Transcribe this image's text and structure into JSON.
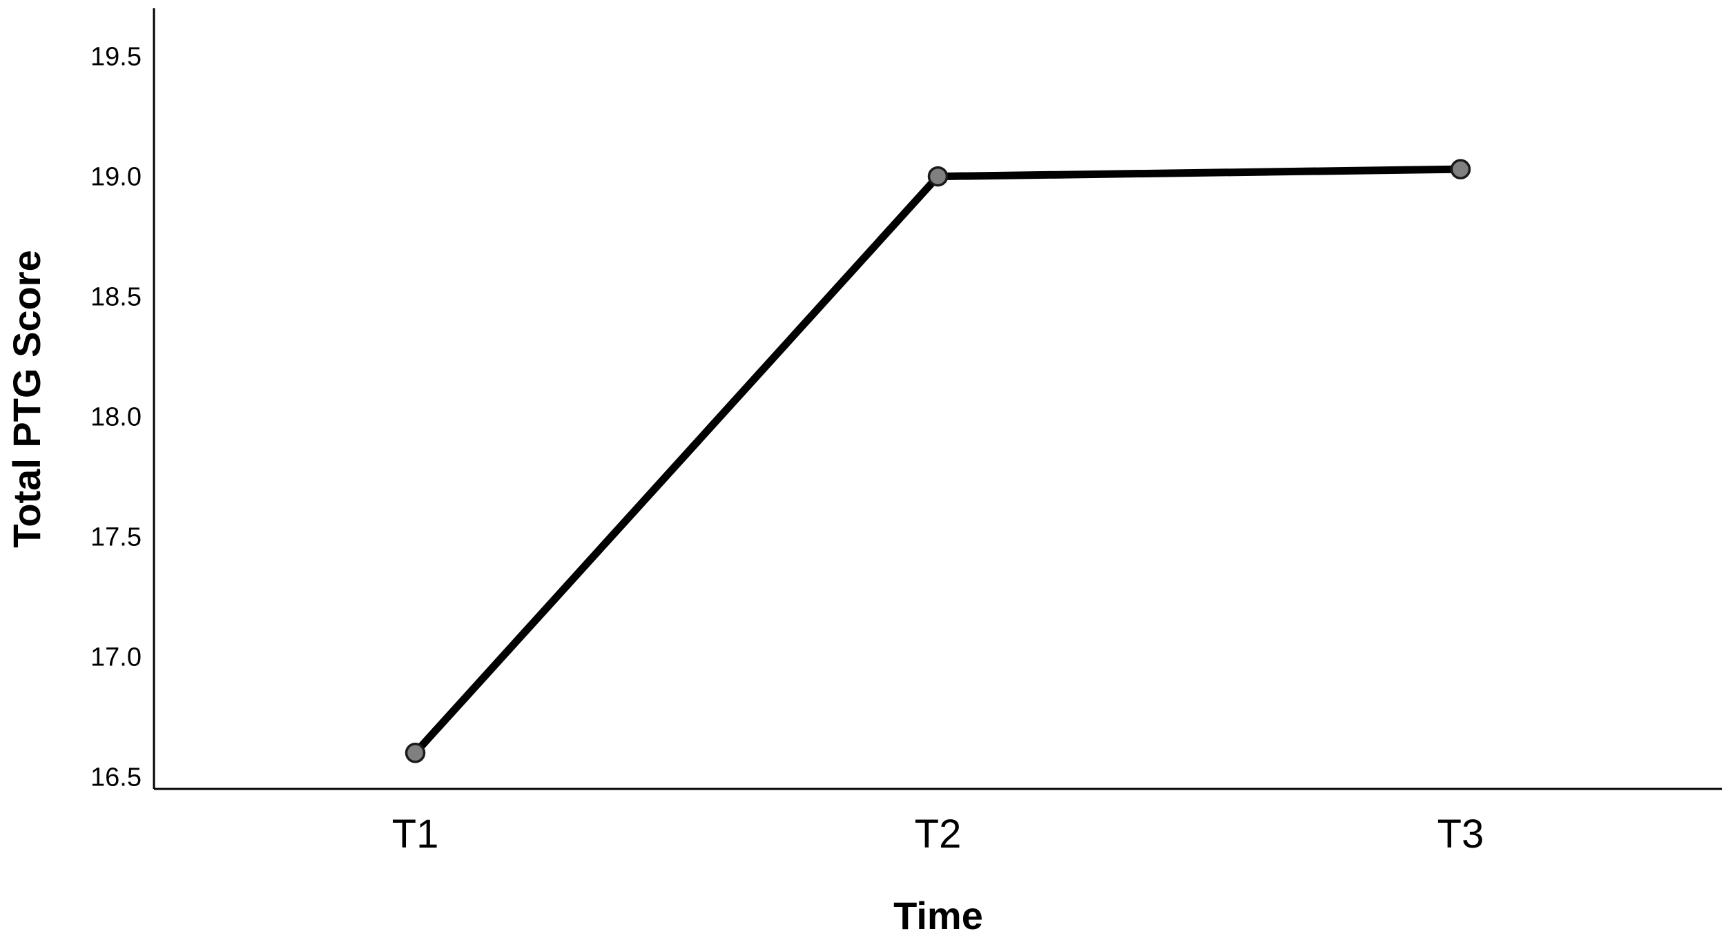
{
  "chart_data": {
    "type": "line",
    "title": "",
    "xlabel": "Time",
    "ylabel": "Total PTG Score",
    "categories": [
      "T1",
      "T2",
      "T3"
    ],
    "series": [
      {
        "values": [
          16.6,
          19.0,
          19.03
        ]
      }
    ],
    "ylim": [
      16.45,
      19.7
    ],
    "yticks": [
      16.5,
      17.0,
      17.5,
      18.0,
      18.5,
      19.0,
      19.5
    ],
    "ytick_labels": [
      "16.5",
      "17.0",
      "17.5",
      "18.0",
      "18.5",
      "19.0",
      "19.5"
    ],
    "grid": false,
    "legend": "none",
    "colors": {
      "line": "#000000",
      "marker_fill": "#808080",
      "marker_stroke": "#1a1a1a",
      "axis": "#000000"
    }
  }
}
